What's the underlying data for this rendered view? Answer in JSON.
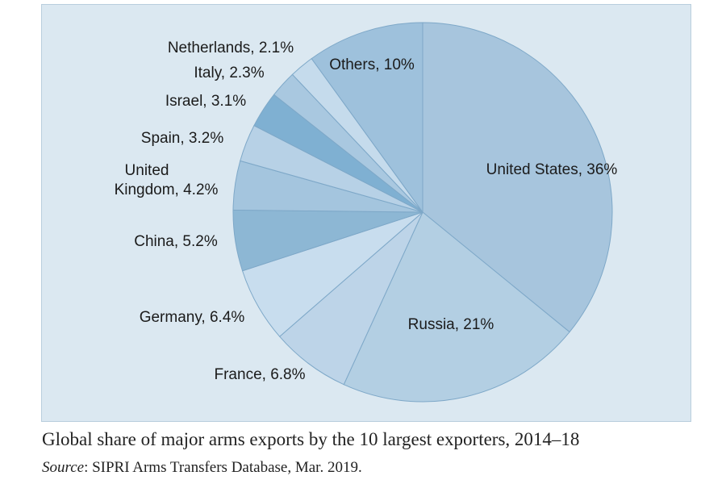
{
  "caption": {
    "title": "Global share of major arms exports by the 10 largest exporters, 2014–18",
    "source_label": "Source",
    "source_text": ": SIPRI Arms Transfers Database, Mar. 2019."
  },
  "chart_data": {
    "type": "pie",
    "title": "Global share of major arms exports by the 10 largest exporters, 2014–18",
    "unit": "%",
    "slices": [
      {
        "label": "United States",
        "value": 36,
        "label_text": "United States, 36%",
        "color": "#a7c5dd"
      },
      {
        "label": "Russia",
        "value": 21,
        "label_text": "Russia, 21%",
        "color": "#b3cfe3"
      },
      {
        "label": "France",
        "value": 6.8,
        "label_text": "France, 6.8%",
        "color": "#bdd4e8"
      },
      {
        "label": "Germany",
        "value": 6.4,
        "label_text": "Germany, 6.4%",
        "color": "#c8ddee"
      },
      {
        "label": "China",
        "value": 5.2,
        "label_text": "China, 5.2%",
        "color": "#8db7d4"
      },
      {
        "label": "United Kingdom",
        "value": 4.2,
        "label_text": "United Kingdom, 4.2%",
        "color": "#a4c5de"
      },
      {
        "label": "Spain",
        "value": 3.2,
        "label_text": "Spain, 3.2%",
        "color": "#b7d1e6"
      },
      {
        "label": "Israel",
        "value": 3.1,
        "label_text": "Israel, 3.1%",
        "color": "#7fb0d2"
      },
      {
        "label": "Italy",
        "value": 2.3,
        "label_text": "Italy, 2.3%",
        "color": "#a9c8e0"
      },
      {
        "label": "Netherlands",
        "value": 2.1,
        "label_text": "Netherlands, 2.1%",
        "color": "#c5dbec"
      },
      {
        "label": "Others",
        "value": 10,
        "label_text": "Others, 10%",
        "color": "#9ec1dc"
      }
    ],
    "start_angle": "12 o'clock",
    "direction": "clockwise",
    "colors": {
      "background": "#dbe8f1",
      "slice_border": "#7ea8c8"
    }
  }
}
